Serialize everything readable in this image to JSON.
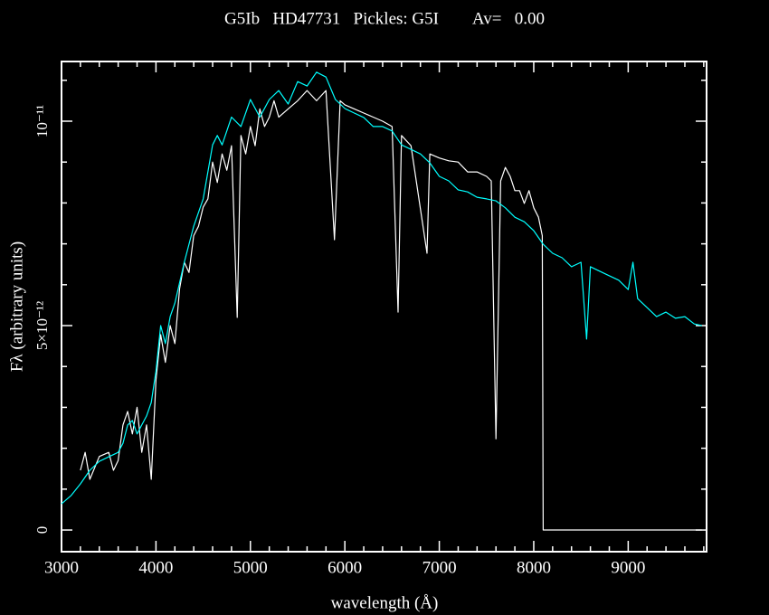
{
  "chart_data": {
    "type": "line",
    "title": "G5Ib   HD47731   Pickles: G5I        Av=   0.00",
    "xlabel": "wavelength (Å)",
    "ylabel": "Fλ (arbitrary units)",
    "xlim": [
      3000,
      9830
    ],
    "ylim": [
      -5.3e-13,
      1.146e-11
    ],
    "xticks": [
      3000,
      4000,
      5000,
      6000,
      7000,
      8000,
      9000
    ],
    "yticks": [
      0,
      {
        "value": 5e-12,
        "label": "5×10⁻¹²"
      },
      {
        "value": 1e-11,
        "label": "10⁻¹¹"
      }
    ],
    "xminorticks": [
      3200,
      3400,
      3600,
      3800,
      4200,
      4400,
      4600,
      4800,
      5200,
      5400,
      5600,
      5800,
      6200,
      6400,
      6600,
      6800,
      7200,
      7400,
      7600,
      7800,
      8200,
      8400,
      8600,
      8800,
      9200,
      9400,
      9600,
      9800
    ],
    "yminorticks": [
      1e-12,
      2e-12,
      3e-12,
      4e-12,
      6e-12,
      7e-12,
      8e-12,
      9e-12,
      1.1e-11
    ],
    "series": [
      {
        "color": "#ffffff",
        "x": [
          3200,
          3250,
          3300,
          3400,
          3500,
          3550,
          3600,
          3650,
          3700,
          3750,
          3800,
          3850,
          3900,
          3950,
          4000,
          4050,
          4100,
          4150,
          4200,
          4250,
          4300,
          4350,
          4400,
          4450,
          4500,
          4550,
          4600,
          4650,
          4700,
          4750,
          4800,
          4860,
          4900,
          4950,
          5000,
          5050,
          5100,
          5150,
          5200,
          5250,
          5300,
          5400,
          5500,
          5600,
          5700,
          5800,
          5890,
          5950,
          6000,
          6100,
          6200,
          6300,
          6400,
          6500,
          6563,
          6600,
          6700,
          6870,
          6900,
          7000,
          7100,
          7200,
          7300,
          7400,
          7500,
          7550,
          7600,
          7650,
          7700,
          7750,
          7800,
          7850,
          7900,
          7950,
          8000,
          8050,
          8090,
          8100,
          9780
        ],
        "values": [
          1.46e-12,
          1.9e-12,
          1.24e-12,
          1.8e-12,
          1.9e-12,
          1.46e-12,
          1.7e-12,
          2.57e-12,
          2.9e-12,
          2.35e-12,
          3e-12,
          1.9e-12,
          2.57e-12,
          1.24e-12,
          3.67e-12,
          4.78e-12,
          4.1e-12,
          5e-12,
          4.56e-12,
          5.9e-12,
          6.55e-12,
          6.3e-12,
          7.2e-12,
          7.43e-12,
          7.9e-12,
          8.1e-12,
          9e-12,
          8.5e-12,
          9.2e-12,
          8.8e-12,
          9.4e-12,
          5.2e-12,
          9.65e-12,
          9.2e-12,
          9.87e-12,
          9.4e-12,
          1.03e-11,
          9.87e-12,
          1.01e-11,
          1.05e-11,
          1.01e-11,
          1.03e-11,
          1.05e-11,
          1.075e-11,
          1.05e-11,
          1.075e-11,
          7.1e-12,
          1.05e-11,
          1.04e-11,
          1.03e-11,
          1.02e-11,
          1.01e-11,
          1e-11,
          9.87e-12,
          5.33e-12,
          9.65e-12,
          9.4e-12,
          6.77e-12,
          9.2e-12,
          9.1e-12,
          9.03e-12,
          9e-12,
          8.76e-12,
          8.76e-12,
          8.65e-12,
          8.54e-12,
          2.23e-12,
          8.54e-12,
          8.87e-12,
          8.65e-12,
          8.3e-12,
          8.3e-12,
          7.99e-12,
          8.3e-12,
          7.88e-12,
          7.65e-12,
          7.2e-12,
          0,
          0
        ]
      },
      {
        "color": "#00ffff",
        "x": [
          3000,
          3100,
          3200,
          3300,
          3400,
          3500,
          3600,
          3650,
          3700,
          3750,
          3800,
          3850,
          3900,
          3950,
          4000,
          4050,
          4100,
          4150,
          4200,
          4300,
          4400,
          4500,
          4600,
          4650,
          4700,
          4800,
          4900,
          5000,
          5100,
          5200,
          5300,
          5400,
          5500,
          5600,
          5700,
          5800,
          5900,
          6000,
          6100,
          6200,
          6300,
          6400,
          6500,
          6600,
          6700,
          6800,
          6900,
          7000,
          7100,
          7200,
          7300,
          7400,
          7500,
          7600,
          7700,
          7800,
          7900,
          8000,
          8100,
          8200,
          8300,
          8400,
          8500,
          8560,
          8600,
          8700,
          8800,
          8900,
          9000,
          9050,
          9100,
          9200,
          9300,
          9400,
          9500,
          9600,
          9700,
          9780
        ],
        "values": [
          6.4e-13,
          8.4e-13,
          1.13e-12,
          1.46e-12,
          1.68e-12,
          1.79e-12,
          1.9e-12,
          2.12e-12,
          2.57e-12,
          2.68e-12,
          2.35e-12,
          2.57e-12,
          2.79e-12,
          3.12e-12,
          3.89e-12,
          5e-12,
          4.56e-12,
          5.22e-12,
          5.55e-12,
          6.55e-12,
          7.43e-12,
          8.1e-12,
          9.42e-12,
          9.65e-12,
          9.42e-12,
          1.01e-11,
          9.87e-12,
          1.053e-11,
          1.01e-11,
          1.053e-11,
          1.075e-11,
          1.042e-11,
          1.097e-11,
          1.086e-11,
          1.12e-11,
          1.108e-11,
          1.053e-11,
          1.031e-11,
          1.02e-11,
          1.009e-11,
          9.87e-12,
          9.87e-12,
          9.76e-12,
          9.42e-12,
          9.31e-12,
          9.2e-12,
          8.98e-12,
          8.65e-12,
          8.54e-12,
          8.32e-12,
          8.27e-12,
          8.14e-12,
          8.1e-12,
          8.05e-12,
          7.88e-12,
          7.65e-12,
          7.54e-12,
          7.32e-12,
          6.99e-12,
          6.77e-12,
          6.66e-12,
          6.44e-12,
          6.55e-12,
          4.67e-12,
          6.44e-12,
          6.33e-12,
          6.22e-12,
          6.11e-12,
          5.88e-12,
          6.55e-12,
          5.66e-12,
          5.44e-12,
          5.22e-12,
          5.33e-12,
          5.18e-12,
          5.22e-12,
          5.04e-12,
          5e-12
        ]
      }
    ]
  }
}
